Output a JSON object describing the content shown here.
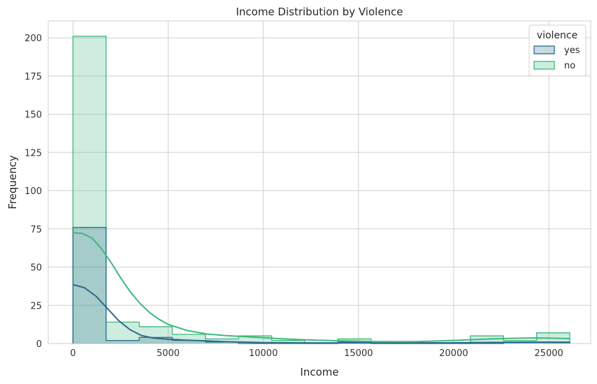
{
  "chart_data": {
    "type": "histogram",
    "title": "Income Distribution by Violence",
    "xlabel": "Income",
    "ylabel": "Frequency",
    "xlim": [
      -1300,
      27200
    ],
    "ylim": [
      0,
      211
    ],
    "xticks": [
      0,
      5000,
      10000,
      15000,
      20000,
      25000
    ],
    "yticks": [
      0,
      25,
      50,
      75,
      100,
      125,
      150,
      175,
      200
    ],
    "grid": true,
    "bin_edges": [
      0,
      1740,
      3480,
      5220,
      6960,
      8700,
      10440,
      12180,
      13920,
      15660,
      17400,
      19140,
      20880,
      22620,
      24360,
      26100
    ],
    "legend": {
      "title": "violence",
      "position": "top-right",
      "entries": [
        "yes",
        "no"
      ]
    },
    "series": [
      {
        "name": "yes",
        "color": "#2a6a8c",
        "counts": [
          76,
          2,
          4,
          2,
          1,
          0,
          0,
          0,
          1,
          0,
          0,
          0,
          0,
          1,
          1
        ],
        "kde": [
          [
            0,
            38.5
          ],
          [
            600,
            36.5
          ],
          [
            1200,
            31
          ],
          [
            1800,
            23
          ],
          [
            2400,
            15
          ],
          [
            3000,
            9
          ],
          [
            3600,
            5.2
          ],
          [
            4200,
            3.6
          ],
          [
            5000,
            2.8
          ],
          [
            6000,
            2.2
          ],
          [
            7000,
            1.7
          ],
          [
            8000,
            1.2
          ],
          [
            9000,
            0.9
          ],
          [
            10000,
            0.6
          ],
          [
            12000,
            0.4
          ],
          [
            14000,
            0.4
          ],
          [
            16000,
            0.4
          ],
          [
            18000,
            0.4
          ],
          [
            20000,
            0.5
          ],
          [
            22000,
            0.7
          ],
          [
            24000,
            0.8
          ],
          [
            26100,
            0.7
          ]
        ]
      },
      {
        "name": "no",
        "color": "#3db77e",
        "counts": [
          201,
          14,
          11,
          6,
          3,
          5,
          2,
          0,
          3,
          0,
          0,
          0,
          5,
          2,
          7
        ],
        "kde": [
          [
            0,
            72.5
          ],
          [
            500,
            72
          ],
          [
            1000,
            69
          ],
          [
            1500,
            62
          ],
          [
            2000,
            53
          ],
          [
            2500,
            43
          ],
          [
            3000,
            34
          ],
          [
            3500,
            26.5
          ],
          [
            4000,
            20.5
          ],
          [
            4500,
            16
          ],
          [
            5000,
            12.5
          ],
          [
            6000,
            8.5
          ],
          [
            7000,
            6.3
          ],
          [
            8000,
            5.2
          ],
          [
            9000,
            4.5
          ],
          [
            10000,
            3.8
          ],
          [
            11000,
            3.1
          ],
          [
            12000,
            2.5
          ],
          [
            13000,
            2.1
          ],
          [
            14000,
            1.8
          ],
          [
            15000,
            1.5
          ],
          [
            16000,
            1.3
          ],
          [
            17000,
            1.2
          ],
          [
            18000,
            1.3
          ],
          [
            19000,
            1.6
          ],
          [
            20000,
            2.0
          ],
          [
            21000,
            2.5
          ],
          [
            22000,
            3.0
          ],
          [
            23000,
            3.4
          ],
          [
            24000,
            3.6
          ],
          [
            25000,
            3.5
          ],
          [
            26100,
            3.2
          ]
        ]
      }
    ]
  }
}
